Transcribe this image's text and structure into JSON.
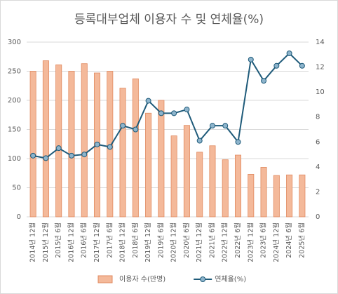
{
  "chart_data": {
    "type": "bar",
    "title": "등록대부업체 이용자 수 및 연체율(%)",
    "categories": [
      "2014년 12월",
      "2015년 12월",
      "2015년 6월",
      "2016년 12월",
      "2016년 6월",
      "2017년 12월",
      "2017년 6월",
      "2018년 12월",
      "2018년 6월",
      "2019년 12월",
      "2019년 6월",
      "2020년 12월",
      "2020년 6월",
      "2021년 12월",
      "2021년 6월",
      "2022년 12월",
      "2022년 6월",
      "2023년 12월",
      "2023년 6월",
      "2024년 12월",
      "2024년 6월",
      "2025년 6월"
    ],
    "series": [
      {
        "name": "이용자 수(만명)",
        "type": "bar",
        "color": "#f4b99a",
        "stroke": "#e08a60",
        "values": [
          250,
          268,
          261,
          250,
          263,
          247,
          250,
          221,
          237,
          178,
          200,
          139,
          157,
          111,
          122,
          98,
          106,
          73,
          85,
          71,
          72,
          72
        ]
      },
      {
        "name": "연체율(%)",
        "type": "line",
        "axis": "y2",
        "color": "#1f5b7a",
        "marker_color": "#8db4cc",
        "values": [
          4.9,
          4.7,
          5.5,
          4.9,
          5.0,
          5.8,
          5.6,
          7.3,
          7.0,
          9.3,
          8.3,
          8.3,
          8.6,
          6.1,
          7.3,
          7.3,
          6.0,
          12.6,
          10.9,
          12.1,
          13.1,
          12.1
        ]
      }
    ],
    "ylim": [
      0,
      300
    ],
    "yticks": [
      0,
      50,
      100,
      150,
      200,
      250,
      300
    ],
    "y2lim": [
      0,
      14
    ],
    "y2ticks": [
      0,
      2,
      4,
      6,
      8,
      10,
      12,
      14
    ],
    "grid": true,
    "legend": "bottom"
  }
}
